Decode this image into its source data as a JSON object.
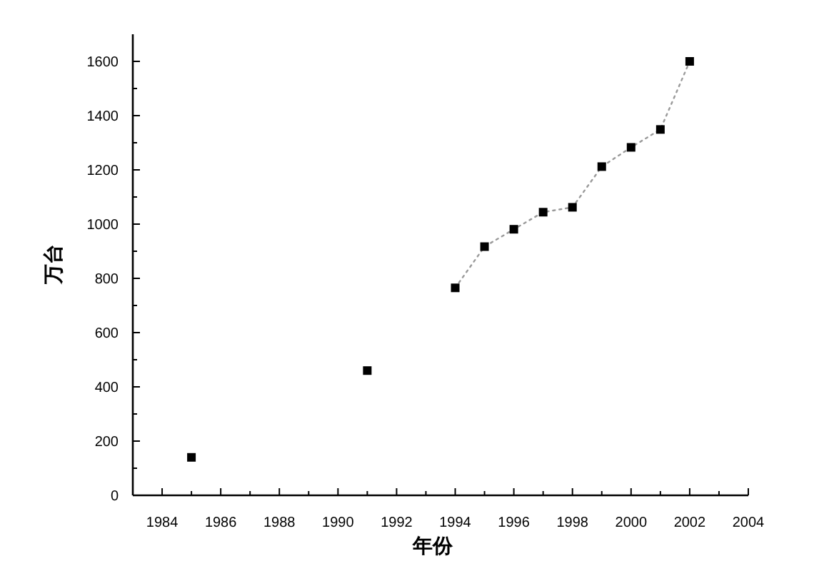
{
  "chart_data": {
    "type": "scatter",
    "xlabel": "年份",
    "ylabel": "万台",
    "xlim": [
      1983,
      2004
    ],
    "ylim": [
      0,
      1700
    ],
    "xticks": [
      1984,
      1986,
      1988,
      1990,
      1992,
      1994,
      1996,
      1998,
      2000,
      2002,
      2004
    ],
    "yticks": [
      0,
      200,
      400,
      600,
      800,
      1000,
      1200,
      1400,
      1600
    ],
    "grid": false,
    "series": [
      {
        "type": "line",
        "color": "#9a9a9a",
        "line_style": "dotted",
        "marker": "none",
        "x": [
          1994,
          1995,
          1996,
          1997,
          1998,
          1999,
          2000,
          2001,
          2002
        ],
        "values": [
          765,
          917,
          981,
          1044,
          1062,
          1212,
          1283,
          1349,
          1600
        ]
      },
      {
        "color": "#000000",
        "marker": "square",
        "x": [
          1985,
          1991,
          1994,
          1995,
          1996,
          1997,
          1998,
          1999,
          2000,
          2001,
          2002
        ],
        "values": [
          140,
          460,
          765,
          917,
          981,
          1044,
          1062,
          1212,
          1283,
          1349,
          1600
        ]
      }
    ]
  }
}
